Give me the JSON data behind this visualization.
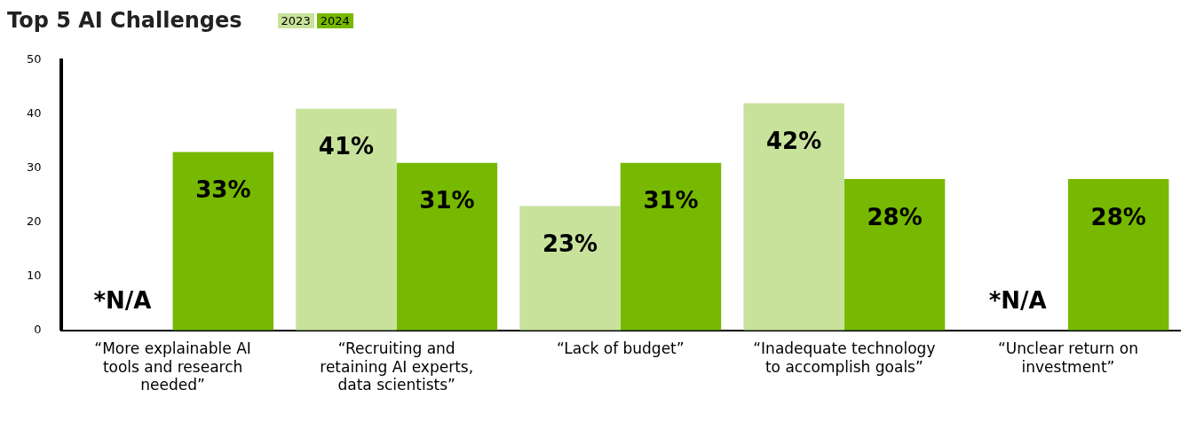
{
  "chart_data": {
    "type": "bar",
    "title": "Top 5 AI Challenges",
    "categories": [
      "“More explainable AI tools and research needed”",
      "“Recruiting and retaining AI experts, data scientists”",
      "“Lack of budget”",
      "“Inadequate technology to accomplish goals”",
      "“Unclear return on investment”"
    ],
    "series": [
      {
        "name": "2023",
        "color": "#c8e29b",
        "values": [
          null,
          41,
          23,
          42,
          null
        ],
        "value_labels": [
          "*N/A",
          "41%",
          "23%",
          "42%",
          "*N/A"
        ]
      },
      {
        "name": "2024",
        "color": "#76b900",
        "values": [
          33,
          31,
          31,
          28,
          28
        ],
        "value_labels": [
          "33%",
          "31%",
          "31%",
          "28%",
          "28%"
        ]
      }
    ],
    "ylim": [
      0,
      50
    ],
    "yticks": [
      0,
      10,
      20,
      30,
      40,
      50
    ],
    "grid": false,
    "legend": "top left"
  }
}
